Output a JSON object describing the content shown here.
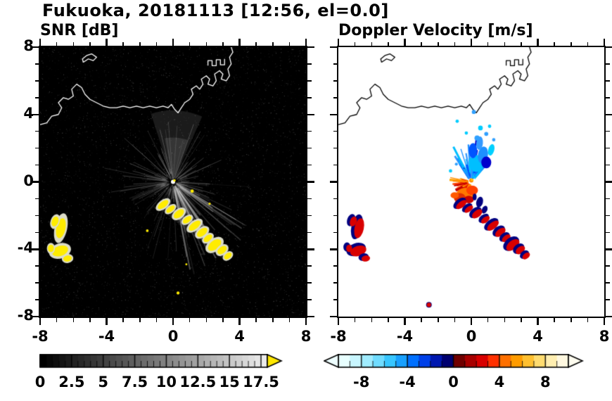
{
  "title": "Fukuoka, 20181113 [12:56, el=0.0]",
  "axes": {
    "xlim": [
      -8,
      8
    ],
    "ylim": [
      -8,
      8
    ],
    "major_ticks": [
      -8,
      -4,
      0,
      4,
      8
    ],
    "minor_tick_step": 1,
    "x_tick_labels": [
      "-8",
      "-4",
      "0",
      "4",
      "8"
    ],
    "y_tick_values": [
      8,
      4,
      0,
      -4,
      -8
    ],
    "y_tick_labels": [
      "8",
      "4",
      "0",
      "-4",
      "-8"
    ]
  },
  "chart_data": {
    "type": "heatmap",
    "panels": [
      {
        "id": "snr",
        "title": "SNR [dB]",
        "xlim": [
          -8,
          8
        ],
        "ylim": [
          -8,
          8
        ],
        "background": "#000000",
        "coast_color": "#ffffff",
        "colorbar": {
          "range": [
            0,
            18
          ],
          "style": "grayscale-black-to-lightgray",
          "tick_values": [
            0,
            2.5,
            5,
            7.5,
            10,
            12.5,
            15,
            17.5
          ],
          "tick_labels": [
            "0",
            "2.5",
            "5",
            "7.5",
            "10",
            "12.5",
            "15",
            "17.5"
          ],
          "minor_step": 0.5,
          "over_arrow_color": "#ffe800"
        },
        "features": {
          "noise_count": 6500,
          "spokes": {
            "count": 160,
            "len_max_km": 4.2
          },
          "se_fan": {
            "az_min": 115,
            "az_max": 170,
            "count": 45,
            "len_max_km": 4.6
          },
          "plume": {
            "az_min": -18,
            "az_max": 24,
            "radius_km": 4.3
          },
          "echo_color": "#ffec00",
          "halo_color": "#dcdcc8"
        }
      },
      {
        "id": "doppler",
        "title": "Doppler Velocity [m/s]",
        "xlim": [
          -8,
          8
        ],
        "ylim": [
          -8,
          8
        ],
        "background": "#ffffff",
        "coast_color": "#000000",
        "colorbar": {
          "range": [
            -10,
            10
          ],
          "tick_values": [
            -8,
            -4,
            0,
            4,
            8
          ],
          "tick_labels": [
            "-8",
            "-4",
            "0",
            "4",
            "8"
          ],
          "minor_step": 1,
          "under_arrow_color": "#eefeff",
          "over_arrow_color": "#fffdf0",
          "colors": [
            "#e8ffff",
            "#c8f6ff",
            "#a0ecff",
            "#70dcff",
            "#38c6ff",
            "#18a0ff",
            "#0070ff",
            "#0040e8",
            "#0018b0",
            "#000070",
            "#700000",
            "#a80000",
            "#d80000",
            "#ff3000",
            "#ff7000",
            "#ff9c00",
            "#ffc030",
            "#ffdc70",
            "#ffeeb0",
            "#fff8e0"
          ]
        },
        "features": {
          "blue_fan": {
            "az_min": -38,
            "az_max": 42,
            "count": 80,
            "r0": [
              0.2,
              0.7
            ],
            "len": [
              0.3,
              2.4
            ],
            "colors": [
              "#00bfff",
              "#1e90ff",
              "#0055ff",
              "#0000cd",
              "#3399ff",
              "#00d0ff"
            ]
          },
          "red_fan": {
            "az_min": 185,
            "az_max": 292,
            "count": 65,
            "r0": [
              0.15,
              0.5
            ],
            "len": [
              0.25,
              1.5
            ],
            "colors": [
              "#ff4500",
              "#e00000",
              "#ff8c00",
              "#ffa500",
              "#c00000"
            ]
          },
          "navy": "#000080",
          "chain_red": "#d80000"
        }
      }
    ],
    "coastlines": [
      [
        [
          -8.0,
          3.4
        ],
        [
          -7.6,
          3.5
        ],
        [
          -7.3,
          3.9
        ],
        [
          -6.9,
          4.0
        ],
        [
          -6.7,
          4.4
        ],
        [
          -6.9,
          4.7
        ],
        [
          -6.6,
          5.0
        ],
        [
          -6.3,
          4.9
        ],
        [
          -6.0,
          5.1
        ],
        [
          -6.1,
          5.5
        ],
        [
          -5.8,
          5.8
        ],
        [
          -5.5,
          5.6
        ],
        [
          -5.3,
          5.2
        ],
        [
          -5.0,
          4.9
        ],
        [
          -4.6,
          4.7
        ],
        [
          -4.2,
          4.5
        ],
        [
          -3.8,
          4.4
        ],
        [
          -3.4,
          4.4
        ],
        [
          -3.0,
          4.5
        ],
        [
          -2.6,
          4.4
        ],
        [
          -2.2,
          4.5
        ],
        [
          -1.8,
          4.4
        ],
        [
          -1.4,
          4.5
        ],
        [
          -1.0,
          4.4
        ],
        [
          -0.6,
          4.5
        ],
        [
          -0.3,
          4.4
        ],
        [
          -0.1,
          4.6
        ],
        [
          0.1,
          4.3
        ],
        [
          0.3,
          4.1
        ],
        [
          0.5,
          4.4
        ],
        [
          0.7,
          4.7
        ],
        [
          1.0,
          4.9
        ],
        [
          1.2,
          5.2
        ],
        [
          1.1,
          5.5
        ],
        [
          1.4,
          5.7
        ],
        [
          1.6,
          5.5
        ],
        [
          1.8,
          5.8
        ],
        [
          1.7,
          6.1
        ],
        [
          2.0,
          6.3
        ],
        [
          2.2,
          6.1
        ],
        [
          2.1,
          5.8
        ],
        [
          2.4,
          5.7
        ],
        [
          2.6,
          6.0
        ],
        [
          2.5,
          6.4
        ],
        [
          2.8,
          6.6
        ],
        [
          3.0,
          6.4
        ],
        [
          2.9,
          6.1
        ],
        [
          3.2,
          6.0
        ],
        [
          3.4,
          6.3
        ],
        [
          3.3,
          6.7
        ],
        [
          3.5,
          7.0
        ],
        [
          3.4,
          7.4
        ],
        [
          3.6,
          7.7
        ],
        [
          3.5,
          8.0
        ]
      ],
      [
        [
          -5.4,
          7.1
        ],
        [
          -5.1,
          7.3
        ],
        [
          -4.8,
          7.2
        ],
        [
          -4.6,
          7.4
        ],
        [
          -4.9,
          7.6
        ],
        [
          -5.2,
          7.5
        ],
        [
          -5.45,
          7.3
        ],
        [
          -5.4,
          7.1
        ]
      ],
      [
        [
          2.1,
          6.9
        ],
        [
          2.1,
          7.2
        ],
        [
          2.35,
          7.2
        ],
        [
          2.35,
          6.9
        ],
        [
          2.6,
          6.9
        ],
        [
          2.6,
          7.25
        ],
        [
          2.85,
          7.25
        ],
        [
          2.85,
          6.95
        ],
        [
          3.1,
          6.95
        ],
        [
          3.1,
          7.3
        ]
      ]
    ],
    "chain_blobs": [
      [
        -0.6,
        -1.35,
        0.38,
        0.18,
        -38
      ],
      [
        -0.15,
        -1.62,
        0.3,
        0.15,
        -38
      ],
      [
        0.35,
        -1.9,
        0.36,
        0.2,
        -38
      ],
      [
        0.85,
        -2.25,
        0.3,
        0.16,
        -38
      ],
      [
        1.3,
        -2.6,
        0.42,
        0.2,
        -38
      ],
      [
        1.75,
        -3.0,
        0.36,
        0.2,
        -38
      ],
      [
        2.1,
        -3.35,
        0.3,
        0.17,
        -38
      ],
      [
        2.5,
        -3.75,
        0.46,
        0.26,
        -38
      ],
      [
        2.95,
        -4.05,
        0.32,
        0.2,
        -38
      ],
      [
        3.3,
        -4.4,
        0.26,
        0.16,
        -38
      ]
    ],
    "west_blobs": [
      [
        -6.75,
        -2.75,
        0.28,
        0.6,
        12
      ],
      [
        -7.1,
        -2.35,
        0.2,
        0.3,
        20
      ],
      [
        -6.8,
        -4.1,
        0.5,
        0.3,
        -18
      ],
      [
        -6.35,
        -4.55,
        0.26,
        0.18,
        -10
      ],
      [
        -7.35,
        -3.95,
        0.18,
        0.22,
        0
      ]
    ],
    "snr_specks": [
      [
        1.15,
        -0.55,
        0.1
      ],
      [
        0.3,
        -6.6,
        0.09
      ],
      [
        -1.55,
        -2.9,
        0.08
      ],
      [
        2.2,
        -1.3,
        0.07
      ],
      [
        0.8,
        -4.9,
        0.06
      ]
    ],
    "cyan_specks": [
      [
        0.55,
        3.2,
        0.14
      ],
      [
        0.9,
        2.85,
        0.12
      ],
      [
        -0.85,
        3.6,
        0.1
      ],
      [
        0.15,
        4.15,
        0.12
      ],
      [
        1.1,
        3.3,
        0.1
      ],
      [
        0.35,
        2.6,
        0.16
      ],
      [
        -0.3,
        2.9,
        0.1
      ],
      [
        1.35,
        2.5,
        0.1
      ],
      [
        -1.25,
        0.65,
        0.1
      ],
      [
        -0.9,
        1.05,
        0.09
      ]
    ],
    "blue_cluster": [
      [
        0.3,
        1.1,
        0.45,
        0.5,
        0
      ],
      [
        0.7,
        1.6,
        0.3,
        0.5,
        10
      ],
      [
        0.1,
        1.85,
        0.25,
        0.45,
        0
      ],
      [
        0.9,
        1.15,
        0.3,
        0.35,
        0
      ],
      [
        0.5,
        2.3,
        0.2,
        0.4,
        5
      ],
      [
        1.2,
        1.9,
        0.18,
        0.35,
        15
      ]
    ],
    "red_core": [
      [
        -0.35,
        -0.75,
        0.55,
        0.4,
        0
      ],
      [
        0.05,
        -0.5,
        0.35,
        0.28,
        0
      ],
      [
        -0.7,
        -0.95,
        0.35,
        0.28,
        0
      ],
      [
        -0.15,
        -1.05,
        0.3,
        0.22,
        0
      ],
      [
        -1.0,
        -0.8,
        0.25,
        0.18,
        0
      ]
    ],
    "red_core_colors": [
      "#ff7800",
      "#ff4000",
      "#e03000",
      "#c80000",
      "#ff5a00"
    ],
    "navy_patches": [
      [
        0.5,
        -1.2,
        0.2,
        0.32,
        15
      ],
      [
        0.8,
        -1.65,
        0.16,
        0.24,
        25
      ],
      [
        0.2,
        -0.9,
        0.12,
        0.2,
        0
      ]
    ],
    "red_specks": [
      [
        -2.55,
        -7.3,
        0.13
      ]
    ]
  }
}
